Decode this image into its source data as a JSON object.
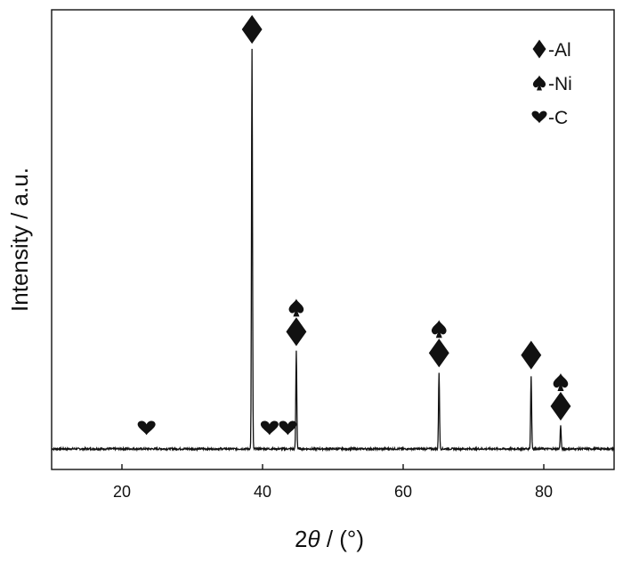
{
  "chart_data": {
    "type": "line",
    "xlabel_prefix": "2",
    "xlabel_symbol": "θ",
    "xlabel_suffix": " / (°)",
    "ylabel": "Intensity / a.u.",
    "xlim": [
      10,
      90
    ],
    "ylim": [
      0,
      100
    ],
    "baseline": 4,
    "xticks": [
      20,
      40,
      60,
      80
    ],
    "grid": false,
    "legend": {
      "placement": "top-right",
      "entries": [
        {
          "marker": "diamond-icon",
          "label": "-Al"
        },
        {
          "marker": "spade-icon",
          "label": "-Ni"
        },
        {
          "marker": "heart-icon",
          "label": "-C"
        }
      ]
    },
    "peaks": [
      {
        "x": 38.5,
        "y": 98
      },
      {
        "x": 44.8,
        "y": 27
      },
      {
        "x": 65.1,
        "y": 22
      },
      {
        "x": 78.2,
        "y": 21
      },
      {
        "x": 82.4,
        "y": 9.5
      }
    ],
    "annotations": [
      {
        "x": 38.5,
        "y": 100,
        "markers": [
          "diamond-icon"
        ]
      },
      {
        "x": 44.8,
        "y": 29,
        "markers": [
          "diamond-icon",
          "spade-icon"
        ]
      },
      {
        "x": 65.1,
        "y": 24,
        "markers": [
          "diamond-icon",
          "spade-icon"
        ]
      },
      {
        "x": 78.2,
        "y": 23.5,
        "markers": [
          "diamond-icon"
        ]
      },
      {
        "x": 82.4,
        "y": 11.5,
        "markers": [
          "diamond-icon",
          "spade-icon"
        ]
      },
      {
        "x": 23.5,
        "y": 6.5,
        "markers": [
          "heart-icon"
        ]
      },
      {
        "x": 41.0,
        "y": 6.5,
        "markers": [
          "heart-icon"
        ]
      },
      {
        "x": 43.6,
        "y": 6.5,
        "markers": [
          "heart-icon"
        ]
      }
    ]
  }
}
